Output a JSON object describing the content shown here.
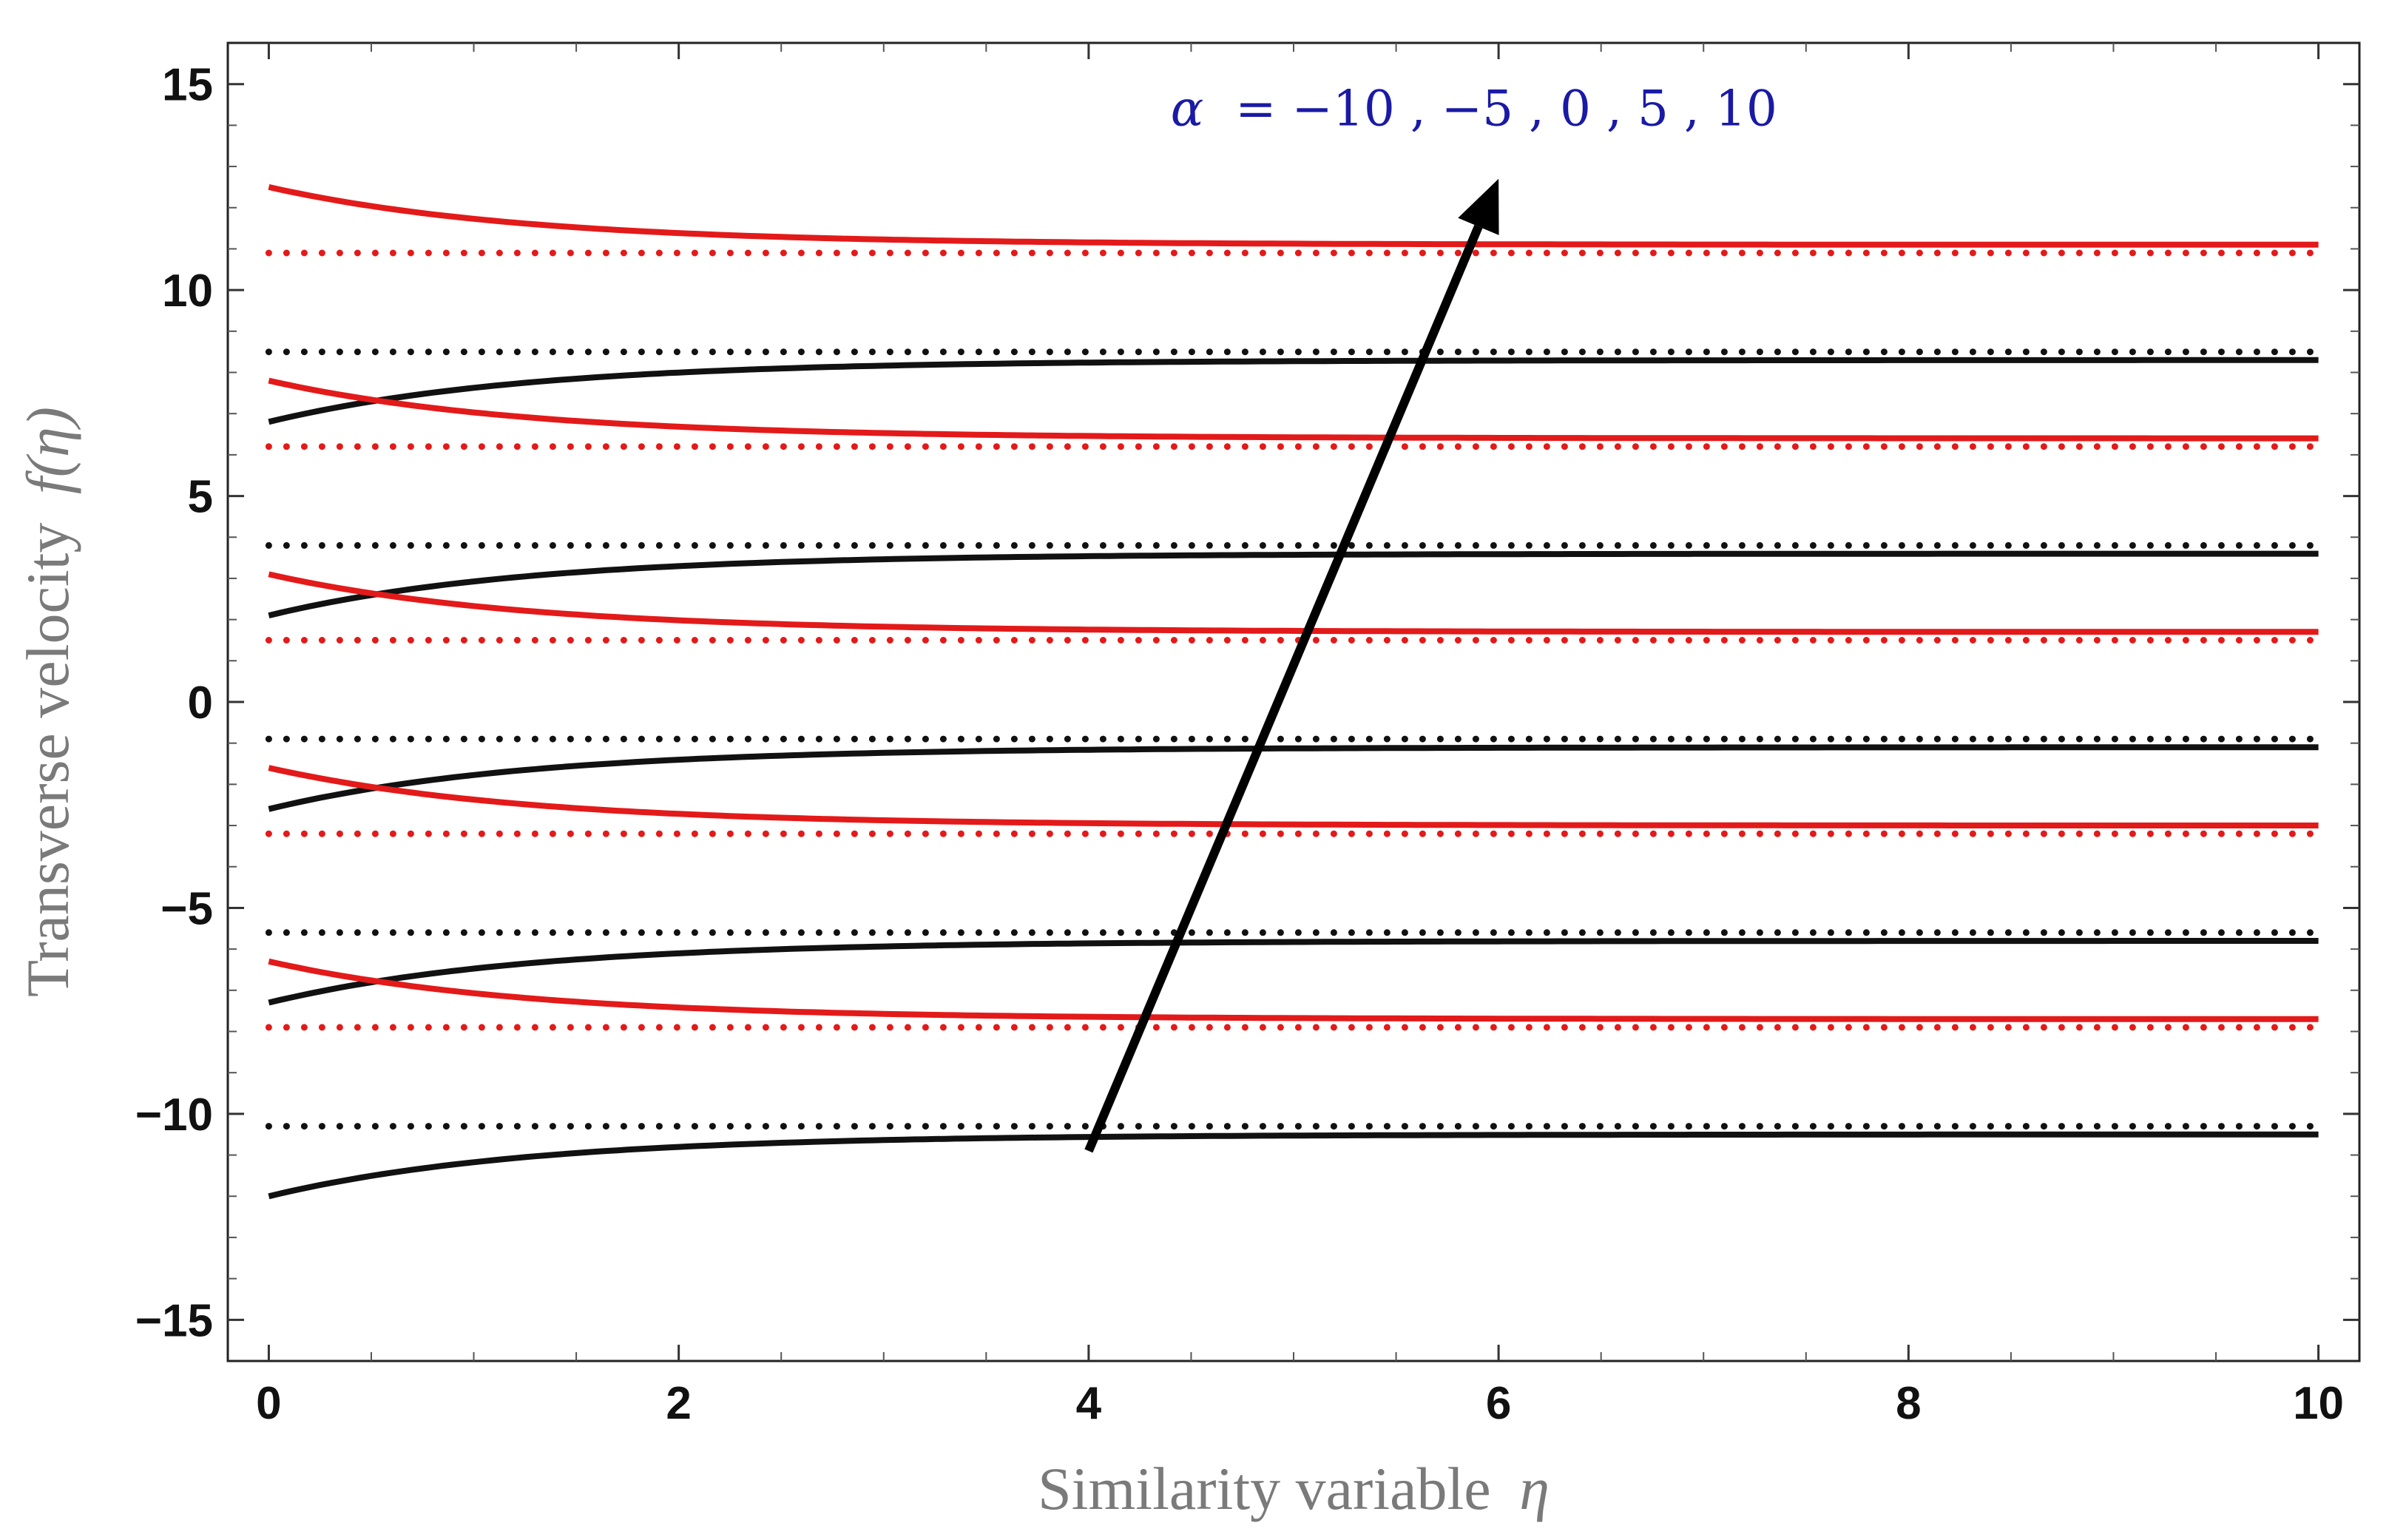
{
  "chart_data": {
    "type": "line",
    "title": "",
    "xlabel": "Similarity variable",
    "xlabel_symbol": "η",
    "ylabel": "Transverse velocity",
    "ylabel_symbol": "f(η)",
    "xlim": [
      -0.2,
      10.2
    ],
    "ylim": [
      -16.0,
      16.0
    ],
    "x_ticks": [
      0,
      2,
      4,
      6,
      8,
      10
    ],
    "x_tick_labels": [
      "0",
      "2",
      "4",
      "6",
      "8",
      "10"
    ],
    "y_ticks": [
      -15,
      -10,
      -5,
      0,
      5,
      10,
      15
    ],
    "y_tick_labels": [
      "−15",
      "−10",
      "−5",
      "0",
      "5",
      "10",
      "15"
    ],
    "grid": false,
    "colors": {
      "red": "#e31a1a",
      "black": "#111111",
      "annotation": "#1a1aa6"
    },
    "annotation": {
      "symbol": "α",
      "text": "= −10 , −5 , 0 , 5 , 10",
      "arrow_from": [
        4.0,
        -10.9
      ],
      "arrow_to": [
        6.0,
        12.7
      ],
      "text_anchor": [
        4.4,
        14.0
      ]
    },
    "series": [
      {
        "name": "solid red, α = 10",
        "color": "red",
        "style": "solid",
        "y0": 12.5,
        "yinf": 11.1,
        "decay": 0.8
      },
      {
        "name": "dotted red, α = 10",
        "color": "red",
        "style": "dotted",
        "y0": 10.9,
        "yinf": 10.3,
        "decay": 0
      },
      {
        "name": "dotted black, α = 10",
        "color": "black",
        "style": "dotted",
        "y0": 8.5,
        "yinf": 9.1,
        "decay": 0
      },
      {
        "name": "solid black, α = 10",
        "color": "black",
        "style": "solid",
        "y0": 6.8,
        "yinf": 8.3,
        "decay": 0.8
      },
      {
        "name": "solid red, α = 5",
        "color": "red",
        "style": "solid",
        "y0": 7.8,
        "yinf": 6.4,
        "decay": 0.8
      },
      {
        "name": "dotted red, α = 5",
        "color": "red",
        "style": "dotted",
        "y0": 6.2,
        "yinf": 5.6,
        "decay": 0
      },
      {
        "name": "dotted black, α = 5",
        "color": "black",
        "style": "dotted",
        "y0": 3.8,
        "yinf": 4.4,
        "decay": 0
      },
      {
        "name": "solid black, α = 5",
        "color": "black",
        "style": "solid",
        "y0": 2.1,
        "yinf": 3.6,
        "decay": 0.8
      },
      {
        "name": "solid red, α = 0",
        "color": "red",
        "style": "solid",
        "y0": 3.1,
        "yinf": 1.7,
        "decay": 0.8
      },
      {
        "name": "dotted red, α = 0",
        "color": "red",
        "style": "dotted",
        "y0": 1.5,
        "yinf": 0.9,
        "decay": 0
      },
      {
        "name": "dotted black, α = 0",
        "color": "black",
        "style": "dotted",
        "y0": -0.9,
        "yinf": -0.3,
        "decay": 0
      },
      {
        "name": "solid black, α = 0",
        "color": "black",
        "style": "solid",
        "y0": -2.6,
        "yinf": -1.1,
        "decay": 0.8
      },
      {
        "name": "solid red, α = −5",
        "color": "red",
        "style": "solid",
        "y0": -1.6,
        "yinf": -3.0,
        "decay": 0.8
      },
      {
        "name": "dotted red, α = −5",
        "color": "red",
        "style": "dotted",
        "y0": -3.2,
        "yinf": -3.8,
        "decay": 0
      },
      {
        "name": "dotted black, α = −5",
        "color": "black",
        "style": "dotted",
        "y0": -5.6,
        "yinf": -5.0,
        "decay": 0
      },
      {
        "name": "solid black, α = −5",
        "color": "black",
        "style": "solid",
        "y0": -7.3,
        "yinf": -5.8,
        "decay": 0.8
      },
      {
        "name": "solid red, α = −10",
        "color": "red",
        "style": "solid",
        "y0": -6.3,
        "yinf": -7.7,
        "decay": 0.8
      },
      {
        "name": "dotted red, α = −10",
        "color": "red",
        "style": "dotted",
        "y0": -7.9,
        "yinf": -8.5,
        "decay": 0
      },
      {
        "name": "dotted black, α = −10",
        "color": "black",
        "style": "dotted",
        "y0": -10.3,
        "yinf": -9.7,
        "decay": 0
      },
      {
        "name": "solid black, α = −10",
        "color": "black",
        "style": "solid",
        "y0": -12.0,
        "yinf": -10.5,
        "decay": 0.8
      }
    ]
  }
}
